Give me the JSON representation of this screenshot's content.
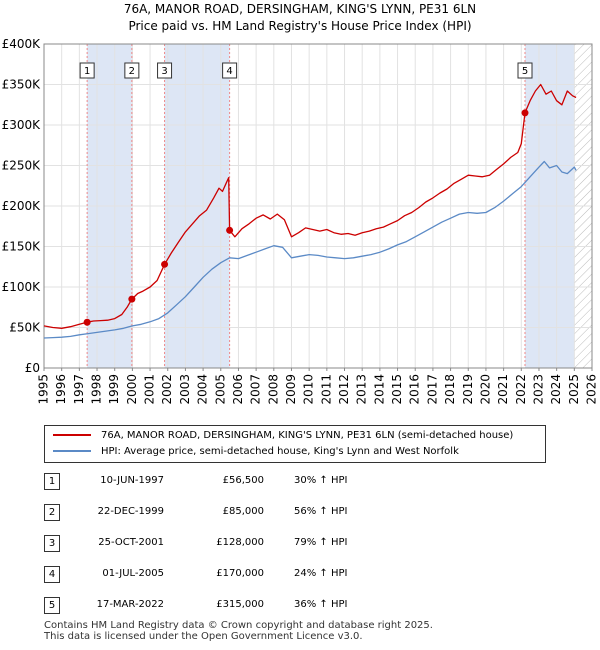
{
  "header": {
    "title_line1": "76A, MANOR ROAD, DERSINGHAM, KING'S LYNN, PE31 6LN",
    "title_line2": "Price paid vs. HM Land Registry's House Price Index (HPI)"
  },
  "colors": {
    "property_line": "#cc0000",
    "hpi_line": "#5b8ac6",
    "shade": "#dde6f5",
    "vline": "#ee8888"
  },
  "chart_data": {
    "type": "line",
    "title": "Price paid vs. HM Land Registry's House Price Index (HPI)",
    "xlabel": "",
    "ylabel": "",
    "xlim": [
      1995,
      2026
    ],
    "ylim": [
      0,
      400000
    ],
    "yticks": [
      {
        "value": 0,
        "label": "£0"
      },
      {
        "value": 50000,
        "label": "£50K"
      },
      {
        "value": 100000,
        "label": "£100K"
      },
      {
        "value": 150000,
        "label": "£150K"
      },
      {
        "value": 200000,
        "label": "£200K"
      },
      {
        "value": 250000,
        "label": "£250K"
      },
      {
        "value": 300000,
        "label": "£300K"
      },
      {
        "value": 350000,
        "label": "£350K"
      },
      {
        "value": 400000,
        "label": "£400K"
      }
    ],
    "xticks": [
      "1995",
      "1996",
      "1997",
      "1998",
      "1999",
      "2000",
      "2001",
      "2002",
      "2003",
      "2004",
      "2005",
      "2006",
      "2007",
      "2008",
      "2009",
      "2010",
      "2011",
      "2012",
      "2013",
      "2014",
      "2015",
      "2016",
      "2017",
      "2018",
      "2019",
      "2020",
      "2021",
      "2022",
      "2023",
      "2024",
      "2025",
      "2026"
    ],
    "grid": true,
    "legend_position": "below",
    "shaded_spans": [
      [
        1997.44,
        1999.97
      ],
      [
        2001.82,
        2005.5
      ],
      [
        2022.21,
        2025.0
      ]
    ],
    "future_hatch_from": 2025.0,
    "series": [
      {
        "name": "76A, MANOR ROAD, DERSINGHAM, KING'S LYNN, PE31 6LN (semi-detached house)",
        "color": "#cc0000",
        "x": [
          1995.0,
          1995.5,
          1996.0,
          1996.5,
          1997.0,
          1997.44,
          1997.8,
          1998.2,
          1998.6,
          1999.0,
          1999.4,
          1999.7,
          1999.97,
          2000.3,
          2000.6,
          2001.0,
          2001.4,
          2001.82,
          2002.2,
          2002.6,
          2003.0,
          2003.4,
          2003.8,
          2004.2,
          2004.6,
          2004.9,
          2005.1,
          2005.3,
          2005.45,
          2005.5,
          2005.8,
          2006.2,
          2006.6,
          2007.0,
          2007.4,
          2007.8,
          2008.2,
          2008.6,
          2009.0,
          2009.4,
          2009.8,
          2010.2,
          2010.6,
          2011.0,
          2011.4,
          2011.8,
          2012.2,
          2012.6,
          2013.0,
          2013.4,
          2013.8,
          2014.2,
          2014.6,
          2015.0,
          2015.4,
          2015.8,
          2016.2,
          2016.6,
          2017.0,
          2017.4,
          2017.8,
          2018.2,
          2018.6,
          2019.0,
          2019.4,
          2019.8,
          2020.2,
          2020.6,
          2021.0,
          2021.4,
          2021.8,
          2022.0,
          2022.21,
          2022.5,
          2022.8,
          2023.1,
          2023.4,
          2023.7,
          2024.0,
          2024.3,
          2024.6,
          2024.9,
          2025.1
        ],
        "y": [
          52000,
          50000,
          49000,
          51000,
          54000,
          56500,
          58000,
          58500,
          59000,
          61000,
          66000,
          75000,
          85000,
          92000,
          95000,
          100000,
          108000,
          128000,
          142000,
          155000,
          168000,
          178000,
          188000,
          195000,
          210000,
          222000,
          218000,
          228000,
          235000,
          170000,
          162000,
          172000,
          178000,
          185000,
          189000,
          184000,
          190000,
          183000,
          162000,
          167000,
          173000,
          171000,
          169000,
          171000,
          167000,
          165000,
          166000,
          164000,
          167000,
          169000,
          172000,
          174000,
          178000,
          182000,
          188000,
          192000,
          198000,
          205000,
          210000,
          216000,
          221000,
          228000,
          233000,
          238000,
          237000,
          236000,
          238000,
          245000,
          252000,
          260000,
          266000,
          277000,
          315000,
          330000,
          342000,
          350000,
          338000,
          342000,
          330000,
          325000,
          342000,
          336000,
          334000
        ]
      },
      {
        "name": "HPI: Average price, semi-detached house, King's Lynn and West Norfolk",
        "color": "#5b8ac6",
        "x": [
          1995.0,
          1995.5,
          1996.0,
          1996.5,
          1997.0,
          1997.5,
          1998.0,
          1998.5,
          1999.0,
          1999.5,
          2000.0,
          2000.5,
          2001.0,
          2001.5,
          2002.0,
          2002.5,
          2003.0,
          2003.5,
          2004.0,
          2004.5,
          2005.0,
          2005.5,
          2006.0,
          2006.5,
          2007.0,
          2007.5,
          2008.0,
          2008.5,
          2009.0,
          2009.5,
          2010.0,
          2010.5,
          2011.0,
          2011.5,
          2012.0,
          2012.5,
          2013.0,
          2013.5,
          2014.0,
          2014.5,
          2015.0,
          2015.5,
          2016.0,
          2016.5,
          2017.0,
          2017.5,
          2018.0,
          2018.5,
          2019.0,
          2019.5,
          2020.0,
          2020.5,
          2021.0,
          2021.5,
          2022.0,
          2022.5,
          2023.0,
          2023.3,
          2023.6,
          2024.0,
          2024.3,
          2024.6,
          2025.0,
          2025.1
        ],
        "y": [
          37000,
          37500,
          38000,
          39000,
          41000,
          42500,
          44000,
          45500,
          47000,
          49000,
          52000,
          54000,
          57000,
          61000,
          68000,
          78000,
          88000,
          100000,
          112000,
          122000,
          130000,
          136000,
          135000,
          139000,
          143000,
          147000,
          151000,
          149000,
          136000,
          138000,
          140000,
          139000,
          137000,
          136000,
          135000,
          136000,
          138000,
          140000,
          143000,
          147000,
          152000,
          156000,
          162000,
          168000,
          174000,
          180000,
          185000,
          190000,
          192000,
          191000,
          192000,
          198000,
          206000,
          215000,
          224000,
          236000,
          248000,
          255000,
          247000,
          250000,
          242000,
          240000,
          248000,
          244000
        ]
      }
    ],
    "sales": [
      {
        "num": "1",
        "x": 1997.44,
        "y": 56500,
        "date": "10-JUN-1997",
        "price": "£56,500",
        "hpi": "30% ↑ HPI"
      },
      {
        "num": "2",
        "x": 1999.97,
        "y": 85000,
        "date": "22-DEC-1999",
        "price": "£85,000",
        "hpi": "56% ↑ HPI"
      },
      {
        "num": "3",
        "x": 2001.82,
        "y": 128000,
        "date": "25-OCT-2001",
        "price": "£128,000",
        "hpi": "79% ↑ HPI"
      },
      {
        "num": "4",
        "x": 2005.5,
        "y": 170000,
        "date": "01-JUL-2005",
        "price": "£170,000",
        "hpi": "24% ↑ HPI"
      },
      {
        "num": "5",
        "x": 2022.21,
        "y": 315000,
        "date": "17-MAR-2022",
        "price": "£315,000",
        "hpi": "36% ↑ HPI"
      }
    ]
  },
  "legend": {
    "property": "76A, MANOR ROAD, DERSINGHAM, KING'S LYNN, PE31 6LN (semi-detached house)",
    "hpi": "HPI: Average price, semi-detached house, King's Lynn and West Norfolk"
  },
  "footer": {
    "line1": "Contains HM Land Registry data © Crown copyright and database right 2025.",
    "line2": "This data is licensed under the Open Government Licence v3.0."
  }
}
